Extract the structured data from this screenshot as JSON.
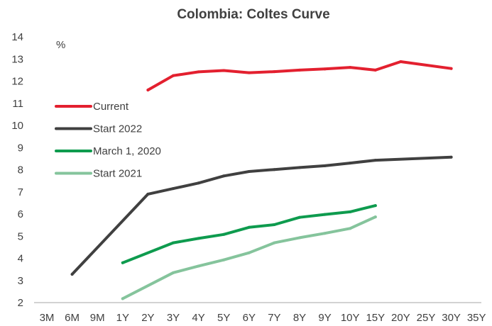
{
  "chart_data": {
    "type": "line",
    "title": "Colombia: Coltes Curve",
    "unit_label": "%",
    "x_categories": [
      "3M",
      "6M",
      "9M",
      "1Y",
      "2Y",
      "3Y",
      "4Y",
      "5Y",
      "6Y",
      "7Y",
      "8Y",
      "9Y",
      "10Y",
      "15Y",
      "20Y",
      "25Y",
      "30Y",
      "35Y"
    ],
    "ylim": [
      2,
      14
    ],
    "y_ticks": [
      2,
      3,
      4,
      5,
      6,
      7,
      8,
      9,
      10,
      11,
      12,
      13,
      14
    ],
    "grid": false,
    "legend_position": "left",
    "series": [
      {
        "name": "Current",
        "color": "#e3202f",
        "points": [
          {
            "x": "2Y",
            "y": 11.6
          },
          {
            "x": "3Y",
            "y": 12.25
          },
          {
            "x": "4Y",
            "y": 12.42
          },
          {
            "x": "5Y",
            "y": 12.48
          },
          {
            "x": "6Y",
            "y": 12.38
          },
          {
            "x": "7Y",
            "y": 12.43
          },
          {
            "x": "8Y",
            "y": 12.5
          },
          {
            "x": "9Y",
            "y": 12.55
          },
          {
            "x": "10Y",
            "y": 12.62
          },
          {
            "x": "15Y",
            "y": 12.5
          },
          {
            "x": "20Y",
            "y": 12.88
          },
          {
            "x": "30Y",
            "y": 12.57
          }
        ]
      },
      {
        "name": "Start 2022",
        "color": "#404040",
        "points": [
          {
            "x": "6M",
            "y": 3.28
          },
          {
            "x": "2Y",
            "y": 6.9
          },
          {
            "x": "3Y",
            "y": 7.15
          },
          {
            "x": "4Y",
            "y": 7.4
          },
          {
            "x": "5Y",
            "y": 7.72
          },
          {
            "x": "6Y",
            "y": 7.92
          },
          {
            "x": "7Y",
            "y": 8.01
          },
          {
            "x": "8Y",
            "y": 8.1
          },
          {
            "x": "9Y",
            "y": 8.18
          },
          {
            "x": "10Y",
            "y": 8.3
          },
          {
            "x": "15Y",
            "y": 8.43
          },
          {
            "x": "30Y",
            "y": 8.57
          }
        ]
      },
      {
        "name": "March 1, 2020",
        "color": "#0e9b4e",
        "points": [
          {
            "x": "1Y",
            "y": 3.8
          },
          {
            "x": "3Y",
            "y": 4.7
          },
          {
            "x": "4Y",
            "y": 4.9
          },
          {
            "x": "5Y",
            "y": 5.08
          },
          {
            "x": "6Y",
            "y": 5.4
          },
          {
            "x": "7Y",
            "y": 5.52
          },
          {
            "x": "8Y",
            "y": 5.85
          },
          {
            "x": "9Y",
            "y": 5.98
          },
          {
            "x": "10Y",
            "y": 6.1
          },
          {
            "x": "15Y",
            "y": 6.38
          }
        ]
      },
      {
        "name": "Start 2021",
        "color": "#85c49c",
        "points": [
          {
            "x": "1Y",
            "y": 2.18
          },
          {
            "x": "3Y",
            "y": 3.35
          },
          {
            "x": "4Y",
            "y": 3.65
          },
          {
            "x": "5Y",
            "y": 3.93
          },
          {
            "x": "6Y",
            "y": 4.25
          },
          {
            "x": "7Y",
            "y": 4.7
          },
          {
            "x": "8Y",
            "y": 4.93
          },
          {
            "x": "9Y",
            "y": 5.13
          },
          {
            "x": "10Y",
            "y": 5.35
          },
          {
            "x": "15Y",
            "y": 5.87
          }
        ]
      }
    ]
  }
}
